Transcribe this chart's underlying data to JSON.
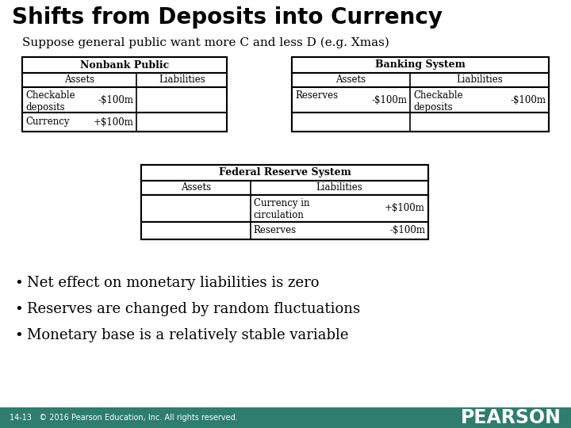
{
  "title": "Shifts from Deposits into Currency",
  "subtitle": "Suppose general public want more C and less D (e.g. Xmas)",
  "bg_color": "#ffffff",
  "footer_bg": "#2e7d6e",
  "footer_text": "14-13   © 2016 Pearson Education, Inc. All rights reserved.",
  "footer_logo": "PEARSON",
  "bullet_points": [
    "Net effect on monetary liabilities is zero",
    "Reserves are changed by random fluctuations",
    "Monetary base is a relatively stable variable"
  ],
  "nonbank_header": "Nonbank Public",
  "nonbank_assets_header": "Assets",
  "nonbank_liab_header": "Liabilities",
  "banking_header": "Banking System",
  "banking_assets_header": "Assets",
  "banking_liab_header": "Liabilities",
  "fed_header": "Federal Reserve System",
  "fed_assets_header": "Assets",
  "fed_liab_header": "Liabilities"
}
